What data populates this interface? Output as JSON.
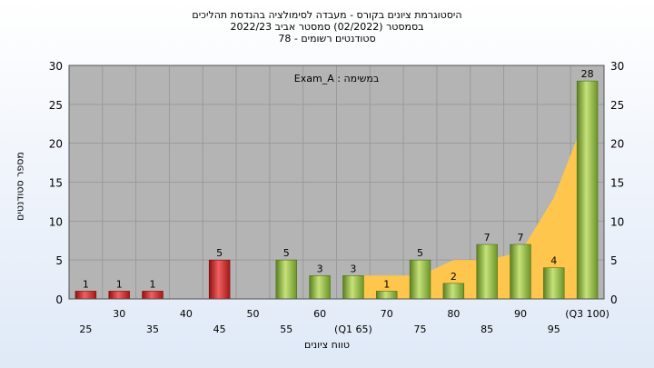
{
  "header": {
    "line1": "היסטוגרמת ציונים בקורס - מעבדה לסימולציה בהנדסת תהליכים",
    "line2": "בסמסטר  (02/2022)  סמסטר אביב 2022/23",
    "line3": "סטודנטים רשומים - 78"
  },
  "chart_data": {
    "type": "bar",
    "title": "היסטוגרמת ציונים בקורס - מעבדה לסימולציה בהנדסת תהליכים",
    "xlabel": "טווח ציונים",
    "ylabel": "מספר סטודנטים",
    "annotation": "במשימה : Exam_A",
    "ylim": [
      0,
      30
    ],
    "yticks": [
      0,
      5,
      10,
      15,
      20,
      25,
      30
    ],
    "grid": true,
    "x_tick_labels_row1": [
      "30",
      "40",
      "50",
      "60",
      "70",
      "80",
      "90",
      "(Q3 100)"
    ],
    "x_tick_labels_row2": [
      "25",
      "35",
      "45",
      "55",
      "(Q1 65)",
      "75",
      "85",
      "95"
    ],
    "categories": [
      "25",
      "30",
      "35",
      "40",
      "45",
      "50",
      "55",
      "60",
      "65",
      "70",
      "75",
      "80",
      "85",
      "90",
      "95",
      "100"
    ],
    "values": [
      1,
      1,
      1,
      0,
      5,
      0,
      5,
      3,
      3,
      1,
      5,
      2,
      7,
      7,
      4,
      28
    ],
    "bar_groups": [
      "low",
      "low",
      "low",
      "low",
      "low",
      "high",
      "high",
      "high",
      "high",
      "high",
      "high",
      "high",
      "high",
      "high",
      "high",
      "high"
    ],
    "area_values": [
      0,
      0,
      0,
      0,
      0,
      0,
      0,
      0,
      3,
      3,
      3,
      5,
      5,
      6,
      13,
      24
    ],
    "colors": {
      "low_bar": "#d42a2a",
      "high_bar": "#8cbd3d",
      "area": "#ffc64d",
      "plot_bg": "#b4b4b4",
      "grid": "#9a9a9a"
    }
  }
}
